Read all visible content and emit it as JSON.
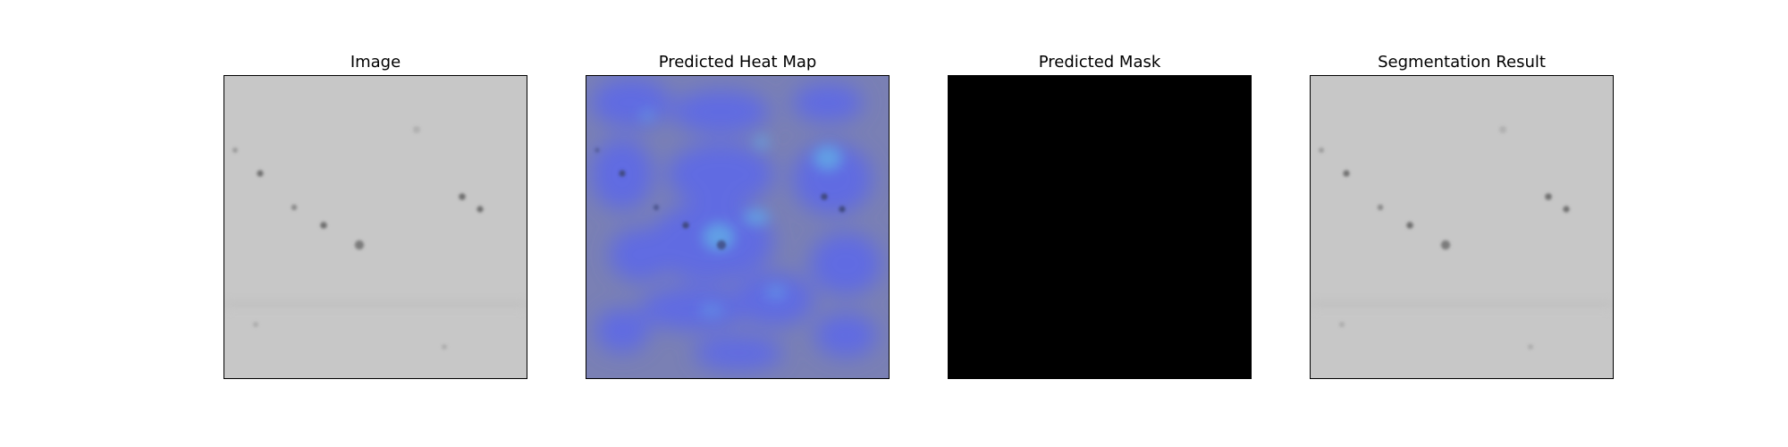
{
  "figure": {
    "panels": [
      {
        "title": "Image"
      },
      {
        "title": "Predicted Heat Map"
      },
      {
        "title": "Predicted Mask"
      },
      {
        "title": "Segmentation Result"
      }
    ]
  },
  "colors": {
    "image_background": "#c7c7c7",
    "heatmap_background": "#7a80b4",
    "heatmap_hot": "#5a66ee",
    "heatmap_peak": "#62a8e6",
    "mask_background": "#000000",
    "speck": "#6e6e6e"
  }
}
